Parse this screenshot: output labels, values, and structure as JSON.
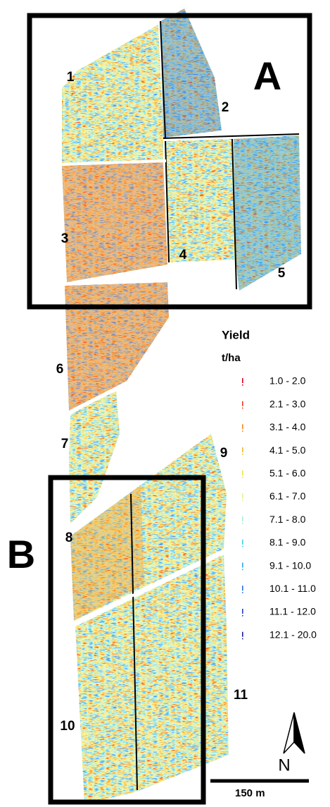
{
  "panels": [
    "A",
    "B"
  ],
  "fields": [
    "1",
    "2",
    "3",
    "4",
    "5",
    "6",
    "7",
    "8",
    "9",
    "10",
    "11"
  ],
  "legend": {
    "title": "Yield",
    "unit": "t/ha",
    "entries": [
      {
        "label": "1.0 - 2.0",
        "color": "#e0001a"
      },
      {
        "label": "2.1 - 3.0",
        "color": "#f03a1a"
      },
      {
        "label": "3.1 - 4.0",
        "color": "#f7871e"
      },
      {
        "label": "4.1 - 5.0",
        "color": "#f6b72a"
      },
      {
        "label": "5.1 - 6.0",
        "color": "#f2e23a"
      },
      {
        "label": "6.1 - 7.0",
        "color": "#e8f08a"
      },
      {
        "label": "7.1 - 8.0",
        "color": "#a8ecd8"
      },
      {
        "label": "8.1 - 9.0",
        "color": "#40d0e8"
      },
      {
        "label": "9.1 - 10.0",
        "color": "#2aa8e8"
      },
      {
        "label": "10.1 - 11.0",
        "color": "#2070e0"
      },
      {
        "label": "11.1 - 12.0",
        "color": "#2040c8"
      },
      {
        "label": "12.1 - 20.0",
        "color": "#1a1aa0"
      }
    ]
  },
  "north": "N",
  "scale_bar": "150 m"
}
